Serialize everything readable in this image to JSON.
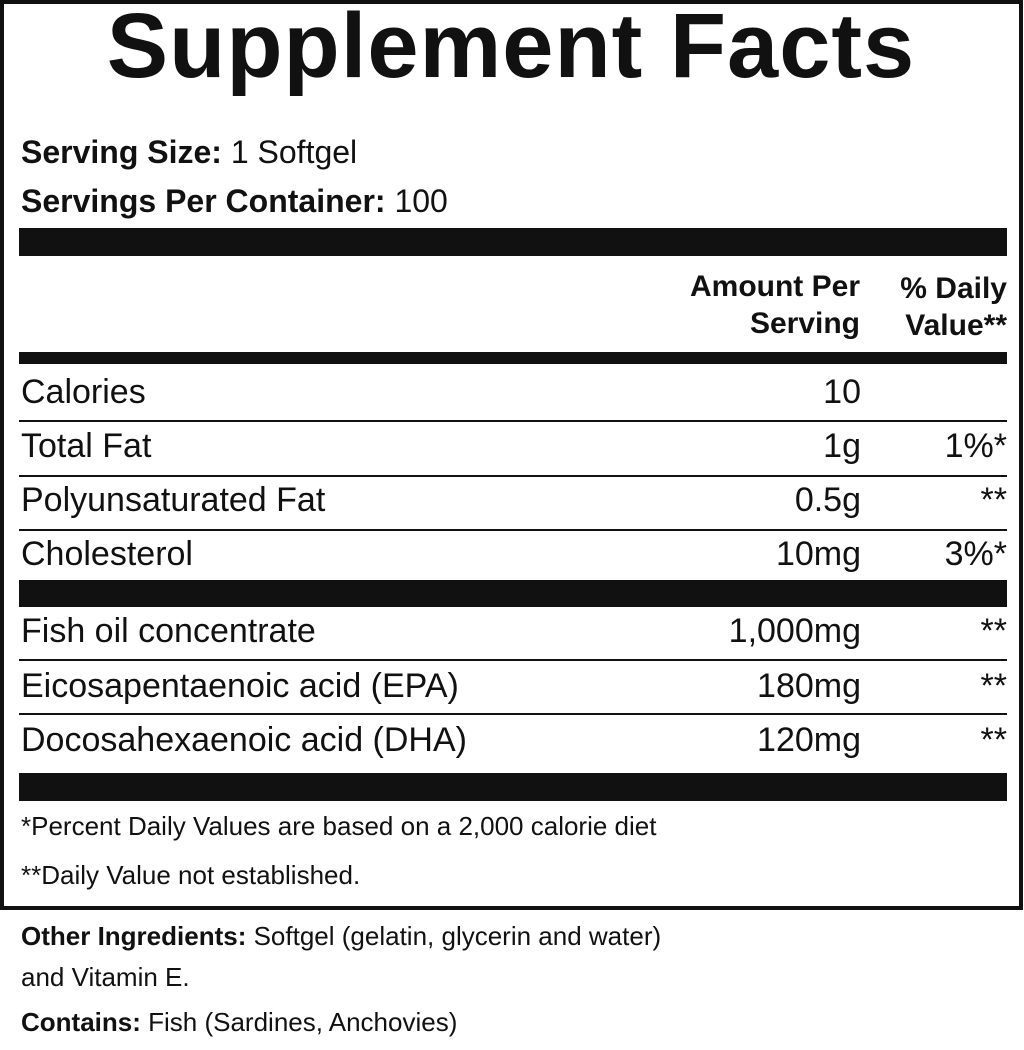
{
  "title": "Supplement Facts",
  "serving_size": {
    "label": "Serving Size:",
    "value": "1 Softgel"
  },
  "servings_per_container": {
    "label": "Servings Per Container:",
    "value": "100"
  },
  "headers": {
    "amount_line1": "Amount Per",
    "amount_line2": "Serving",
    "dv_line1": "% Daily",
    "dv_line2": "Value**"
  },
  "rows": [
    {
      "name": "Calories",
      "amount": "10",
      "dv": ""
    },
    {
      "name": "Total Fat",
      "amount": "1g",
      "dv": "1%*"
    },
    {
      "name": "Polyunsaturated Fat",
      "amount": "0.5g",
      "dv": "**"
    },
    {
      "name": "Cholesterol",
      "amount": "10mg",
      "dv": "3%*"
    },
    {
      "name": "Fish oil concentrate",
      "amount": "1,000mg",
      "dv": "**"
    },
    {
      "name": "Eicosapentaenoic acid (EPA)",
      "amount": "180mg",
      "dv": "**"
    },
    {
      "name": "Docosahexaenoic acid (DHA)",
      "amount": "120mg",
      "dv": "**"
    }
  ],
  "footnotes": [
    "*Percent Daily Values are based on a 2,000 calorie diet",
    "**Daily Value not established."
  ],
  "other_ingredients": {
    "label": "Other Ingredients:",
    "line1": "Softgel (gelatin, glycerin and water)",
    "line2": "and Vitamin E."
  },
  "contains": {
    "label": "Contains:",
    "value": "Fish (Sardines, Anchovies)"
  }
}
